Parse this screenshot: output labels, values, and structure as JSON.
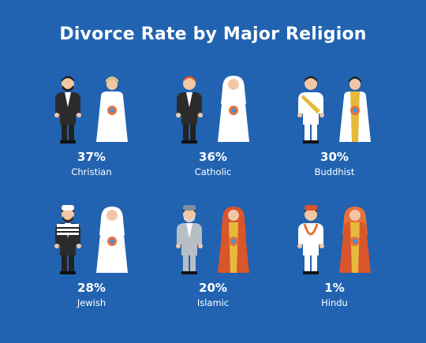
{
  "chart_data": {
    "type": "table",
    "title": "Divorce Rate by Major Religion",
    "unit": "%",
    "categories": [
      "Christian",
      "Catholic",
      "Buddhist",
      "Jewish",
      "Islamic",
      "Hindu"
    ],
    "values": [
      37,
      36,
      30,
      28,
      20,
      1
    ],
    "value_labels": [
      "37%",
      "36%",
      "30%",
      "28%",
      "20%",
      "1%"
    ]
  },
  "colors": {
    "background": "#2163b0",
    "text": "#ffffff"
  }
}
